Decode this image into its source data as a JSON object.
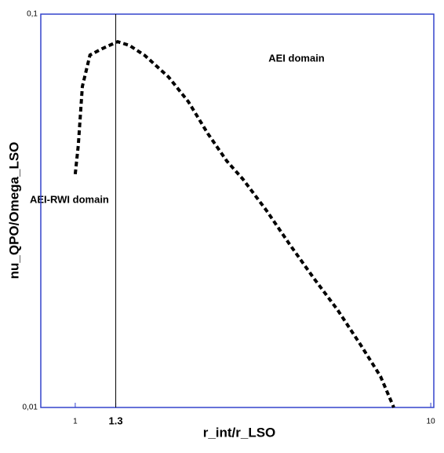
{
  "chart_data": {
    "type": "line",
    "xlabel": "r_int/r_LSO",
    "ylabel": "nu_QPO/Omega_LSO",
    "log_x": true,
    "log_y": true,
    "xlim": [
      0.8,
      10.2
    ],
    "ylim": [
      0.01,
      0.1
    ],
    "xticks": [
      1,
      1.3,
      10
    ],
    "yticks": [
      {
        "value": 0.01,
        "label": "0,01"
      },
      {
        "value": 0.1,
        "label": "0,1"
      }
    ],
    "vline": 1.3,
    "annotations": [
      "AEI domain",
      "AEI-RWI domain"
    ],
    "series": [
      {
        "color": "#000000",
        "x": [
          1.0,
          1.02,
          1.047,
          1.1,
          1.19,
          1.316,
          1.42,
          1.57,
          1.83,
          2.08,
          2.36,
          2.67,
          2.96,
          3.45,
          4.02,
          4.69,
          5.47,
          6.36,
          7.22,
          7.87
        ],
        "values": [
          0.0392,
          0.0464,
          0.0655,
          0.0787,
          0.0817,
          0.0851,
          0.0833,
          0.0785,
          0.0692,
          0.0599,
          0.0497,
          0.0423,
          0.0381,
          0.0317,
          0.0259,
          0.0213,
          0.0177,
          0.0144,
          0.012,
          0.01
        ]
      }
    ]
  }
}
